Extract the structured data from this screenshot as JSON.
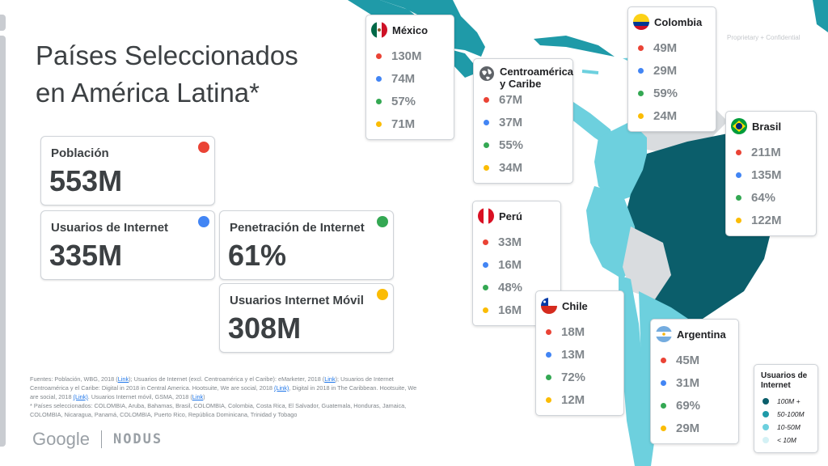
{
  "title": {
    "line1": "Países Seleccionados",
    "line2": "en América Latina*"
  },
  "confidential": "Proprietary + Confidential",
  "stats": {
    "poblacion": {
      "label": "Población",
      "value": "553M"
    },
    "usuarios": {
      "label": "Usuarios de Internet",
      "value": "335M"
    },
    "penetracion": {
      "label": "Penetración de Internet",
      "value": "61%"
    },
    "movil": {
      "label": "Usuarios Internet Móvil",
      "value": "308M"
    }
  },
  "colors": {
    "red": "#ea4335",
    "blue": "#4285f4",
    "green": "#34a853",
    "yellow": "#fbbc04",
    "map_dark": "#0b5e6b",
    "map_mid": "#1f9aa8",
    "map_light": "#6dd0de",
    "map_lightest": "#d4f1f5"
  },
  "countries": {
    "mexico": {
      "name": "México",
      "values": [
        "130M",
        "74M",
        "57%",
        "71M"
      ]
    },
    "centro": {
      "name": "Centroamérica y Caribe",
      "name1": "Centroamérica",
      "name2": "y Caribe",
      "values": [
        "67M",
        "37M",
        "55%",
        "34M"
      ]
    },
    "colombia": {
      "name": "Colombia",
      "values": [
        "49M",
        "29M",
        "59%",
        "24M"
      ]
    },
    "brasil": {
      "name": "Brasil",
      "values": [
        "211M",
        "135M",
        "64%",
        "122M"
      ]
    },
    "peru": {
      "name": "Perú",
      "values": [
        "33M",
        "16M",
        "48%",
        "16M"
      ]
    },
    "chile": {
      "name": "Chile",
      "values": [
        "18M",
        "13M",
        "72%",
        "12M"
      ]
    },
    "argentina": {
      "name": "Argentina",
      "values": [
        "45M",
        "31M",
        "69%",
        "29M"
      ]
    }
  },
  "legend": {
    "title": "Usuarios de Internet",
    "items": [
      "100M +",
      "50-100M",
      "10-50M",
      "< 10M"
    ]
  },
  "sources": {
    "p1": "Fuentes: Población, WBG, 2018 (",
    "link1": "Link",
    "p2": "); Usuarios de Internet (excl. Centroamérica y el Caribe): eMarketer, 2018 (",
    "link2": "Link",
    "p3": "); Usuarios de Internet Centroamérica y el Caribe: Digital in 2018 in Central America. Hootsuite, We are social, 2018 ",
    "link3": "(Link)",
    "p4": ", Digital in 2018 in The Caribbean. Hootsuite, We are social, 2018 ",
    "link4": "(Link)",
    "p5": ". Usuarios Internet móvil, GSMA, 2018 (",
    "link5": "Link",
    "p6": ")",
    "p7": "* Países seleccionados: COLOMBIA, Aruba, Bahamas, Brasil, COLOMBIA, Colombia, Costa Rica, El Salvador, Guatemala, Honduras, Jamaica, COLOMBIA, Nicaragua, Panamá, COLOMBIA, Puerto Rico, República Dominicana, Trinidad y Tobago"
  },
  "footer": {
    "google": "Google",
    "nodus": "NODUS"
  }
}
